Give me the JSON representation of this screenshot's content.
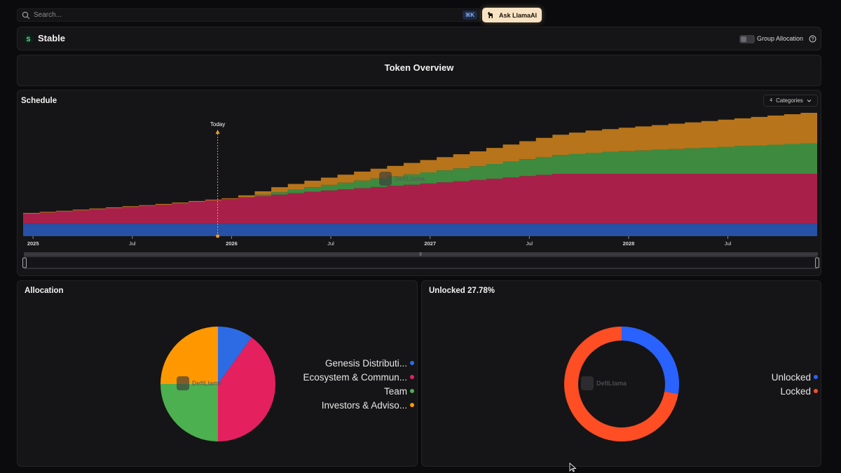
{
  "search": {
    "placeholder": "Search...",
    "shortcut": "⌘K"
  },
  "ask_button": {
    "label": "Ask LlamaAI"
  },
  "token": {
    "logo_letter": "S",
    "name": "Stable"
  },
  "group_allocation": {
    "label": "Group Allocation",
    "enabled": false
  },
  "overview": {
    "title": "Token Overview"
  },
  "schedule": {
    "title": "Schedule",
    "categories_count": "4",
    "categories_label": "Categories",
    "today_label": "Today",
    "watermark": "DefiLlama"
  },
  "allocation": {
    "title": "Allocation",
    "watermark": "DefiLlama",
    "legend": [
      {
        "label": "Genesis Distributi...",
        "color": "#2d6be4"
      },
      {
        "label": "Ecosystem & Commun...",
        "color": "#e5205f"
      },
      {
        "label": "Team",
        "color": "#4caf50"
      },
      {
        "label": "Investors & Adviso...",
        "color": "#ff9800"
      }
    ]
  },
  "unlocked": {
    "title": "Unlocked 27.78%",
    "watermark": "DefiLlama",
    "legend": [
      {
        "label": "Unlocked",
        "color": "#2962ff"
      },
      {
        "label": "Locked",
        "color": "#ff4d24"
      }
    ]
  },
  "chart_data": [
    {
      "type": "area",
      "title": "Schedule",
      "stacked": true,
      "x": [
        "2025",
        "Jul",
        "2026",
        "Jul",
        "2027",
        "Jul",
        "2028",
        "Jul"
      ],
      "x_range": [
        2024.95,
        2028.95
      ],
      "today": 2025.93,
      "y_range": [
        0,
        100
      ],
      "series": [
        {
          "name": "Genesis Distribution",
          "color": "#2651a6",
          "points": [
            [
              2024.95,
              10
            ],
            [
              2028.95,
              10
            ]
          ]
        },
        {
          "name": "Ecosystem & Community",
          "color": "#a8204a",
          "points": [
            [
              2024.95,
              8
            ],
            [
              2025.6,
              15
            ],
            [
              2026.4,
              26
            ],
            [
              2027.2,
              35
            ],
            [
              2027.6,
              40
            ],
            [
              2028.95,
              40
            ]
          ]
        },
        {
          "name": "Team",
          "color": "#3e8a3f",
          "points": [
            [
              2024.95,
              0
            ],
            [
              2025.99,
              0
            ],
            [
              2026.2,
              2
            ],
            [
              2026.6,
              6
            ],
            [
              2027.2,
              11
            ],
            [
              2027.8,
              17
            ],
            [
              2028.5,
              22
            ],
            [
              2028.95,
              25
            ]
          ]
        },
        {
          "name": "Investors & Advisors",
          "color": "#b8741a",
          "points": [
            [
              2024.95,
              0.6
            ],
            [
              2025.99,
              0.6
            ],
            [
              2026.2,
              4
            ],
            [
              2026.6,
              7
            ],
            [
              2027.2,
              12
            ],
            [
              2027.8,
              18
            ],
            [
              2028.5,
              22
            ],
            [
              2028.95,
              25
            ]
          ]
        }
      ]
    },
    {
      "type": "pie",
      "title": "Allocation",
      "categories": [
        "Genesis Distribution",
        "Ecosystem & Community",
        "Team",
        "Investors & Advisors"
      ],
      "values": [
        10,
        40,
        25,
        25
      ],
      "colors": [
        "#2d6be4",
        "#e5205f",
        "#4caf50",
        "#ff9800"
      ]
    },
    {
      "type": "pie",
      "subtype": "donut",
      "title": "Unlocked 27.78%",
      "categories": [
        "Unlocked",
        "Locked"
      ],
      "values": [
        27.78,
        72.22
      ],
      "colors": [
        "#2962ff",
        "#ff4d24"
      ]
    }
  ]
}
